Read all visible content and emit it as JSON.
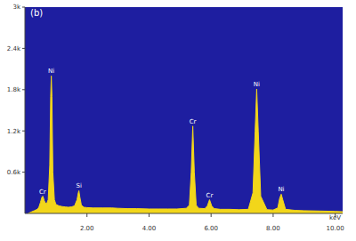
{
  "chart_data": {
    "type": "area",
    "title": "(b)",
    "x_label": "keV",
    "color": "#f2d61a",
    "grid": false,
    "x": [
      0.1,
      0.2,
      0.3,
      0.4,
      0.45,
      0.5,
      0.55,
      0.58,
      0.62,
      0.66,
      0.7,
      0.75,
      0.8,
      0.83,
      0.85,
      0.87,
      0.9,
      0.95,
      1.0,
      1.1,
      1.2,
      1.3,
      1.4,
      1.5,
      1.6,
      1.68,
      1.72,
      1.74,
      1.77,
      1.82,
      1.9,
      2.0,
      2.2,
      2.5,
      2.8,
      3.0,
      3.3,
      3.6,
      4.0,
      4.3,
      4.6,
      4.9,
      5.2,
      5.3,
      5.36,
      5.41,
      5.46,
      5.52,
      5.6,
      5.8,
      5.88,
      5.95,
      6.02,
      6.1,
      6.3,
      6.6,
      6.9,
      7.2,
      7.35,
      7.42,
      7.47,
      7.52,
      7.6,
      7.8,
      8.0,
      8.15,
      8.21,
      8.26,
      8.31,
      8.4,
      8.7,
      9.0,
      9.5,
      10.0,
      10.24
    ],
    "values": [
      0,
      20,
      40,
      60,
      90,
      160,
      240,
      250,
      190,
      150,
      140,
      200,
      700,
      1700,
      2000,
      1700,
      600,
      200,
      130,
      110,
      100,
      95,
      90,
      95,
      110,
      200,
      300,
      330,
      240,
      120,
      90,
      85,
      80,
      80,
      80,
      75,
      70,
      70,
      65,
      65,
      65,
      65,
      75,
      120,
      600,
      1270,
      600,
      120,
      75,
      70,
      110,
      200,
      110,
      70,
      60,
      60,
      55,
      60,
      300,
      1200,
      1810,
      1200,
      250,
      55,
      50,
      80,
      220,
      280,
      200,
      60,
      45,
      40,
      35,
      30,
      25
    ],
    "xlim": [
      0,
      10.24
    ],
    "xticks": [
      {
        "value": 2,
        "label": "2.00"
      },
      {
        "value": 4,
        "label": "4.00"
      },
      {
        "value": 6,
        "label": "6.00"
      },
      {
        "value": 8,
        "label": "8.00"
      },
      {
        "value": 10,
        "label": "10.00"
      }
    ],
    "ylim": [
      0,
      3000
    ],
    "yticks": [
      {
        "value": 600,
        "label": "0.6k"
      },
      {
        "value": 1200,
        "label": "1.2k"
      },
      {
        "value": 1800,
        "label": "1.8k"
      },
      {
        "value": 2400,
        "label": "2.4k"
      },
      {
        "value": 3000,
        "label": "3k"
      }
    ],
    "annotations": [
      {
        "text": "Cr",
        "x": 0.57,
        "y": 250
      },
      {
        "text": "Ni",
        "x": 0.85,
        "y": 2000
      },
      {
        "text": "Si",
        "x": 1.74,
        "y": 330
      },
      {
        "text": "Cr",
        "x": 5.41,
        "y": 1270
      },
      {
        "text": "Cr",
        "x": 5.95,
        "y": 200
      },
      {
        "text": "Ni",
        "x": 7.47,
        "y": 1810
      },
      {
        "text": "Ni",
        "x": 8.26,
        "y": 280
      }
    ]
  }
}
